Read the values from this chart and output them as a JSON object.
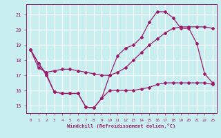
{
  "background_color": "#c8eef0",
  "grid_color": "#ffffff",
  "line_color": "#9b1b6e",
  "xlabel": "Windchill (Refroidissement éolien,°C)",
  "xlim": [
    -0.5,
    23.5
  ],
  "ylim": [
    14.5,
    21.7
  ],
  "yticks": [
    15,
    16,
    17,
    18,
    19,
    20,
    21
  ],
  "xticks": [
    0,
    1,
    2,
    3,
    4,
    5,
    6,
    7,
    8,
    9,
    10,
    11,
    12,
    13,
    14,
    15,
    16,
    17,
    18,
    19,
    20,
    21,
    22,
    23
  ],
  "series1_x": [
    0,
    1,
    2,
    3,
    4,
    5,
    6,
    7,
    8,
    9,
    10,
    11,
    12,
    13,
    14,
    15,
    16,
    17,
    18,
    19,
    20,
    21,
    22,
    23
  ],
  "series1_y": [
    18.7,
    17.8,
    17.1,
    15.9,
    15.8,
    15.8,
    15.8,
    14.9,
    14.85,
    15.5,
    17.0,
    18.3,
    18.8,
    19.0,
    19.5,
    20.5,
    21.2,
    21.2,
    20.8,
    20.1,
    20.1,
    19.1,
    17.1,
    16.5
  ],
  "series2_x": [
    0,
    1,
    2,
    3,
    4,
    5,
    6,
    7,
    8,
    9,
    10,
    11,
    12,
    13,
    14,
    15,
    16,
    17,
    18,
    19,
    20,
    21,
    22,
    23
  ],
  "series2_y": [
    18.7,
    17.5,
    17.2,
    17.3,
    17.4,
    17.4,
    17.3,
    17.2,
    17.1,
    17.0,
    17.0,
    17.2,
    17.5,
    18.0,
    18.5,
    19.0,
    19.4,
    19.8,
    20.1,
    20.2,
    20.2,
    20.2,
    20.2,
    20.1
  ],
  "series3_x": [
    0,
    1,
    2,
    3,
    4,
    5,
    6,
    7,
    8,
    9,
    10,
    11,
    12,
    13,
    14,
    15,
    16,
    17,
    18,
    19,
    20,
    21,
    22,
    23
  ],
  "series3_y": [
    18.7,
    17.8,
    17.0,
    15.9,
    15.8,
    15.8,
    15.8,
    14.9,
    14.85,
    15.5,
    16.0,
    16.0,
    16.0,
    16.0,
    16.1,
    16.2,
    16.4,
    16.5,
    16.5,
    16.5,
    16.5,
    16.5,
    16.5,
    16.4
  ]
}
